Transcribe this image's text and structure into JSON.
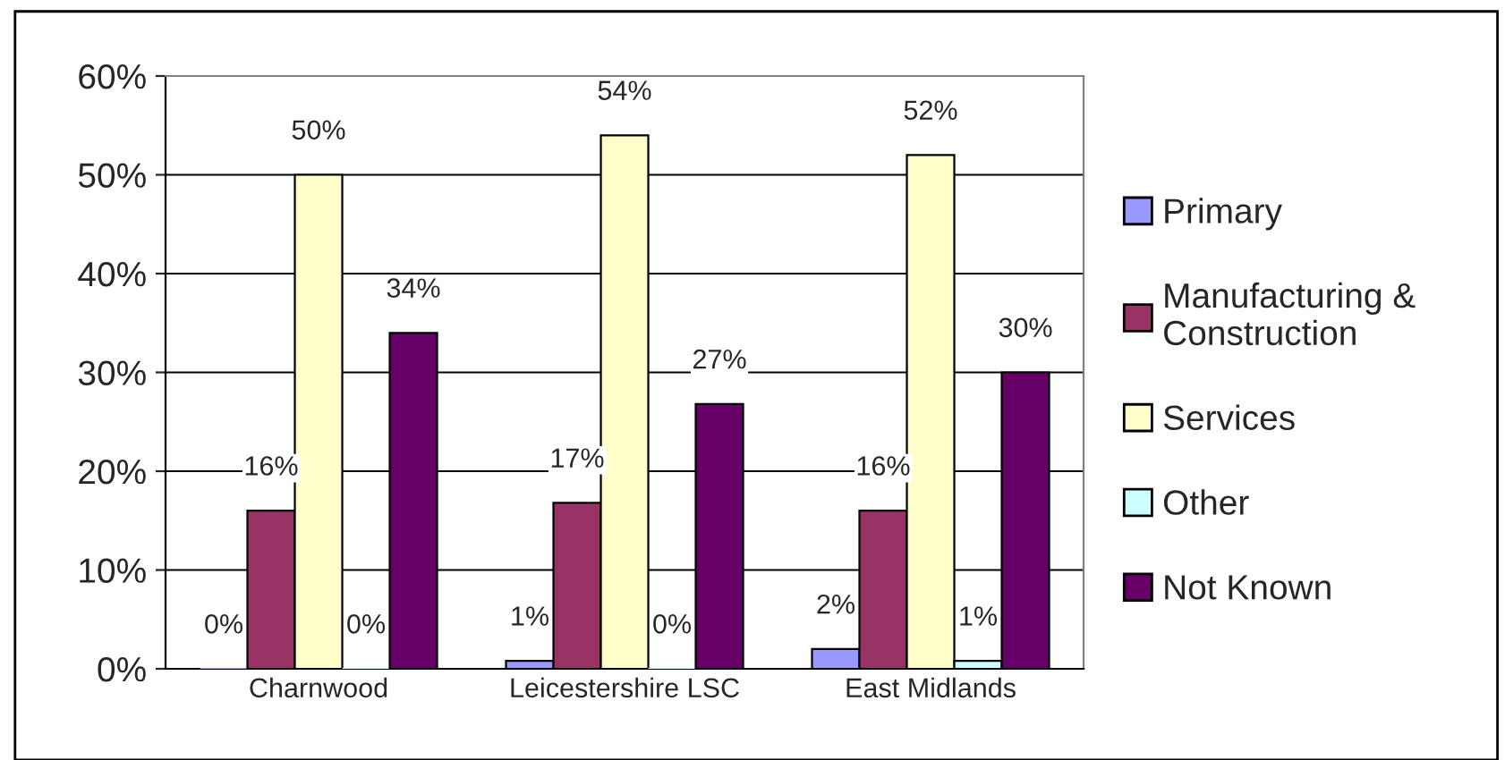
{
  "chart_data": {
    "type": "bar",
    "categories": [
      "Charnwood",
      "Leicestershire LSC",
      "East Midlands"
    ],
    "series": [
      {
        "name": "Primary",
        "color": "#9999ff",
        "values": [
          0,
          0.8,
          2
        ],
        "value_labels": [
          "0%",
          "1%",
          "2%"
        ]
      },
      {
        "name": "Manufacturing & Construction",
        "color": "#993366",
        "values": [
          16,
          16.8,
          16
        ],
        "value_labels": [
          "16%",
          "17%",
          "16%"
        ]
      },
      {
        "name": "Services",
        "color": "#ffffcc",
        "values": [
          50,
          54,
          52
        ],
        "value_labels": [
          "50%",
          "54%",
          "52%"
        ]
      },
      {
        "name": "Other",
        "color": "#ccffff",
        "values": [
          0,
          0,
          0.8
        ],
        "value_labels": [
          "0%",
          "0%",
          "1%"
        ]
      },
      {
        "name": "Not Known",
        "color": "#660066",
        "values": [
          34,
          26.8,
          30
        ],
        "value_labels": [
          "34%",
          "27%",
          "30%"
        ]
      }
    ],
    "ylim": [
      0,
      60
    ],
    "yticks": [
      {
        "value": 0,
        "label": "0%"
      },
      {
        "value": 10,
        "label": "10%"
      },
      {
        "value": 20,
        "label": "20%"
      },
      {
        "value": 30,
        "label": "30%"
      },
      {
        "value": 40,
        "label": "40%"
      },
      {
        "value": 50,
        "label": "50%"
      },
      {
        "value": 60,
        "label": "60%"
      }
    ],
    "grid": "y",
    "legend": "right"
  }
}
